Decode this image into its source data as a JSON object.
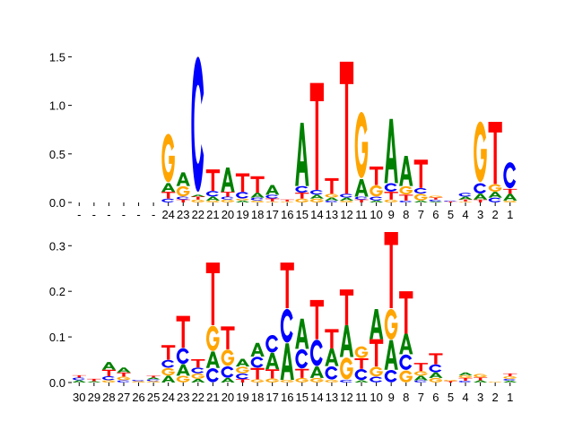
{
  "colors": {
    "A": "#008000",
    "C": "#0000ff",
    "G": "#ffa500",
    "T": "#ff0000"
  },
  "chart_data": [
    {
      "type": "sequence-logo",
      "panel": "top",
      "ylim": [
        0,
        1.55
      ],
      "yticks": [
        0.0,
        0.5,
        1.0,
        1.5
      ],
      "ytick_labels": [
        "0.0",
        "0.5",
        "1.0",
        "1.5"
      ],
      "xtick_labels": [
        "-",
        "-",
        "-",
        "-",
        "-",
        "-",
        "24",
        "23",
        "22",
        "21",
        "20",
        "19",
        "18",
        "17",
        "16",
        "15",
        "14",
        "13",
        "12",
        "11",
        "10",
        "9",
        "8",
        "7",
        "6",
        "5",
        "4",
        "3",
        "2",
        "1"
      ],
      "stacks": [
        [],
        [],
        [],
        [],
        [],
        [],
        [
          [
            "C",
            0.04
          ],
          [
            "T",
            0.07
          ],
          [
            "A",
            0.09
          ],
          [
            "G",
            0.52
          ]
        ],
        [
          [
            "T",
            0.03
          ],
          [
            "C",
            0.03
          ],
          [
            "G",
            0.11
          ],
          [
            "A",
            0.14
          ]
        ],
        [
          [
            "G",
            0.03
          ],
          [
            "T",
            0.03
          ],
          [
            "A",
            0.02
          ],
          [
            "C",
            1.45
          ]
        ],
        [
          [
            "G",
            0.02
          ],
          [
            "A",
            0.04
          ],
          [
            "C",
            0.06
          ],
          [
            "T",
            0.22
          ]
        ],
        [
          [
            "G",
            0.03
          ],
          [
            "C",
            0.03
          ],
          [
            "T",
            0.05
          ],
          [
            "A",
            0.25
          ]
        ],
        [
          [
            "A",
            0.02
          ],
          [
            "G",
            0.02
          ],
          [
            "C",
            0.07
          ],
          [
            "T",
            0.19
          ]
        ],
        [
          [
            "G",
            0.02
          ],
          [
            "C",
            0.03
          ],
          [
            "A",
            0.05
          ],
          [
            "T",
            0.17
          ]
        ],
        [
          [
            "G",
            0.01
          ],
          [
            "T",
            0.03
          ],
          [
            "C",
            0.04
          ],
          [
            "A",
            0.1
          ]
        ],
        [
          [
            "G",
            0.01
          ],
          [
            "T",
            0.02
          ]
        ],
        [
          [
            "G",
            0.04
          ],
          [
            "T",
            0.06
          ],
          [
            "C",
            0.07
          ],
          [
            "A",
            0.65
          ]
        ],
        [
          [
            "G",
            0.04
          ],
          [
            "A",
            0.04
          ],
          [
            "C",
            0.05
          ],
          [
            "T",
            1.1
          ]
        ],
        [
          [
            "C",
            0.02
          ],
          [
            "A",
            0.03
          ],
          [
            "G",
            0.04
          ],
          [
            "T",
            0.16
          ]
        ],
        [
          [
            "G",
            0.02
          ],
          [
            "A",
            0.03
          ],
          [
            "C",
            0.04
          ],
          [
            "T",
            1.36
          ]
        ],
        [
          [
            "T",
            0.03
          ],
          [
            "C",
            0.03
          ],
          [
            "A",
            0.18
          ],
          [
            "G",
            0.71
          ]
        ],
        [
          [
            "A",
            0.02
          ],
          [
            "C",
            0.04
          ],
          [
            "G",
            0.12
          ],
          [
            "T",
            0.19
          ]
        ],
        [
          [
            "G",
            0.03
          ],
          [
            "T",
            0.08
          ],
          [
            "C",
            0.09
          ],
          [
            "A",
            0.66
          ]
        ],
        [
          [
            "C",
            0.02
          ],
          [
            "T",
            0.06
          ],
          [
            "G",
            0.09
          ],
          [
            "A",
            0.31
          ]
        ],
        [
          [
            "A",
            0.02
          ],
          [
            "G",
            0.07
          ],
          [
            "C",
            0.06
          ],
          [
            "T",
            0.29
          ]
        ],
        [
          [
            "A",
            0.01
          ],
          [
            "C",
            0.02
          ],
          [
            "T",
            0.02
          ],
          [
            "G",
            0.02
          ]
        ],
        [
          [
            "T",
            0.01
          ],
          [
            "C",
            0.01
          ]
        ],
        [
          [
            "G",
            0.01
          ],
          [
            "T",
            0.02
          ],
          [
            "A",
            0.03
          ],
          [
            "C",
            0.04
          ]
        ],
        [
          [
            "T",
            0.03
          ],
          [
            "A",
            0.06
          ],
          [
            "C",
            0.11
          ],
          [
            "G",
            0.65
          ]
        ],
        [
          [
            "C",
            0.05
          ],
          [
            "A",
            0.06
          ],
          [
            "G",
            0.08
          ],
          [
            "T",
            0.64
          ]
        ],
        [
          [
            "G",
            0.02
          ],
          [
            "A",
            0.07
          ],
          [
            "T",
            0.05
          ],
          [
            "C",
            0.28
          ]
        ]
      ]
    },
    {
      "type": "sequence-logo",
      "panel": "bottom",
      "ylim": [
        0,
        0.33
      ],
      "yticks": [
        0.0,
        0.1,
        0.2,
        0.3
      ],
      "ytick_labels": [
        "0.0",
        "0.1",
        "0.2",
        "0.3"
      ],
      "xtick_labels": [
        "30",
        "29",
        "28",
        "27",
        "26",
        "25",
        "24",
        "23",
        "22",
        "21",
        "20",
        "19",
        "18",
        "17",
        "16",
        "15",
        "14",
        "13",
        "12",
        "11",
        "10",
        "9",
        "8",
        "7",
        "6",
        "5",
        "4",
        "3",
        "2",
        "1"
      ],
      "stacks": [
        [
          [
            "A",
            0.005
          ],
          [
            "C",
            0.006
          ],
          [
            "T",
            0.005
          ]
        ],
        [
          [
            "A",
            0.003
          ],
          [
            "T",
            0.005
          ]
        ],
        [
          [
            "G",
            0.005
          ],
          [
            "C",
            0.009
          ],
          [
            "T",
            0.014
          ],
          [
            "A",
            0.017
          ]
        ],
        [
          [
            "C",
            0.005
          ],
          [
            "G",
            0.008
          ],
          [
            "T",
            0.009
          ],
          [
            "A",
            0.011
          ]
        ],
        [
          [
            "G",
            0.003
          ],
          [
            "C",
            0.003
          ]
        ],
        [
          [
            "G",
            0.003
          ],
          [
            "C",
            0.004
          ],
          [
            "A",
            0.004
          ],
          [
            "T",
            0.004
          ]
        ],
        [
          [
            "A",
            0.015
          ],
          [
            "G",
            0.017
          ],
          [
            "C",
            0.018
          ],
          [
            "T",
            0.032
          ]
        ],
        [
          [
            "G",
            0.015
          ],
          [
            "A",
            0.025
          ],
          [
            "C",
            0.036
          ],
          [
            "T",
            0.07
          ]
        ],
        [
          [
            "A",
            0.008
          ],
          [
            "G",
            0.012
          ],
          [
            "C",
            0.013
          ],
          [
            "T",
            0.018
          ]
        ],
        [
          [
            "C",
            0.032
          ],
          [
            "A",
            0.036
          ],
          [
            "G",
            0.058
          ],
          [
            "T",
            0.137
          ]
        ],
        [
          [
            "A",
            0.01
          ],
          [
            "C",
            0.026
          ],
          [
            "G",
            0.037
          ],
          [
            "T",
            0.05
          ]
        ],
        [
          [
            "T",
            0.007
          ],
          [
            "C",
            0.013
          ],
          [
            "G",
            0.015
          ],
          [
            "A",
            0.017
          ]
        ],
        [
          [
            "G",
            0.007
          ],
          [
            "T",
            0.025
          ],
          [
            "C",
            0.025
          ],
          [
            "A",
            0.03
          ]
        ],
        [
          [
            "G",
            0.009
          ],
          [
            "T",
            0.02
          ],
          [
            "A",
            0.036
          ],
          [
            "C",
            0.04
          ]
        ],
        [
          [
            "G",
            0.006
          ],
          [
            "A",
            0.08
          ],
          [
            "C",
            0.077
          ],
          [
            "T",
            0.1
          ]
        ],
        [
          [
            "G",
            0.01
          ],
          [
            "T",
            0.02
          ],
          [
            "C",
            0.044
          ],
          [
            "A",
            0.066
          ]
        ],
        [
          [
            "G",
            0.01
          ],
          [
            "A",
            0.025
          ],
          [
            "C",
            0.06
          ],
          [
            "T",
            0.086
          ]
        ],
        [
          [
            "G",
            0.006
          ],
          [
            "C",
            0.03
          ],
          [
            "A",
            0.039
          ],
          [
            "T",
            0.042
          ]
        ],
        [
          [
            "C",
            0.006
          ],
          [
            "G",
            0.05
          ],
          [
            "A",
            0.07
          ],
          [
            "T",
            0.078
          ]
        ],
        [
          [
            "A",
            0.005
          ],
          [
            "C",
            0.025
          ],
          [
            "T",
            0.023
          ],
          [
            "G",
            0.027
          ]
        ],
        [
          [
            "C",
            0.013
          ],
          [
            "G",
            0.022
          ],
          [
            "T",
            0.06
          ],
          [
            "A",
            0.066
          ]
        ],
        [
          [
            "C",
            0.028
          ],
          [
            "A",
            0.065
          ],
          [
            "G",
            0.07
          ],
          [
            "T",
            0.167
          ]
        ],
        [
          [
            "G",
            0.027
          ],
          [
            "C",
            0.035
          ],
          [
            "A",
            0.045
          ],
          [
            "T",
            0.093
          ]
        ],
        [
          [
            "C",
            0.005
          ],
          [
            "A",
            0.01
          ],
          [
            "G",
            0.01
          ],
          [
            "T",
            0.018
          ]
        ],
        [
          [
            "G",
            0.01
          ],
          [
            "A",
            0.012
          ],
          [
            "C",
            0.018
          ],
          [
            "T",
            0.024
          ]
        ],
        [
          [
            "T",
            0.003
          ],
          [
            "G",
            0.003
          ]
        ],
        [
          [
            "C",
            0.004
          ],
          [
            "T",
            0.006
          ],
          [
            "G",
            0.006
          ],
          [
            "A",
            0.006
          ]
        ],
        [
          [
            "A",
            0.005
          ],
          [
            "T",
            0.006
          ],
          [
            "G",
            0.008
          ]
        ],
        [
          [
            "G",
            0.002
          ]
        ],
        [
          [
            "A",
            0.004
          ],
          [
            "C",
            0.004
          ],
          [
            "G",
            0.006
          ],
          [
            "T",
            0.006
          ]
        ]
      ]
    }
  ]
}
